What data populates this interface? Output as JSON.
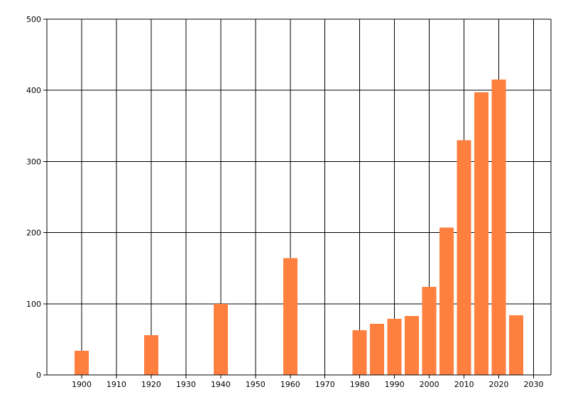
{
  "chart_data": {
    "type": "bar",
    "title": "",
    "xlabel": "",
    "ylabel": "",
    "xlim": [
      1890,
      2035
    ],
    "ylim": [
      0,
      500
    ],
    "grid": true,
    "bar_color": "#ff7f3f",
    "x_ticks": [
      1900,
      1910,
      1920,
      1930,
      1940,
      1950,
      1960,
      1970,
      1980,
      1990,
      2000,
      2010,
      2020,
      2030
    ],
    "y_ticks": [
      0,
      100,
      200,
      300,
      400,
      500
    ],
    "x": [
      1900,
      1920,
      1940,
      1960,
      1980,
      1985,
      1990,
      1995,
      2000,
      2005,
      2010,
      2015,
      2020,
      2025
    ],
    "values": [
      34,
      56,
      100,
      164,
      63,
      72,
      79,
      83,
      124,
      207,
      330,
      397,
      415,
      84
    ]
  }
}
